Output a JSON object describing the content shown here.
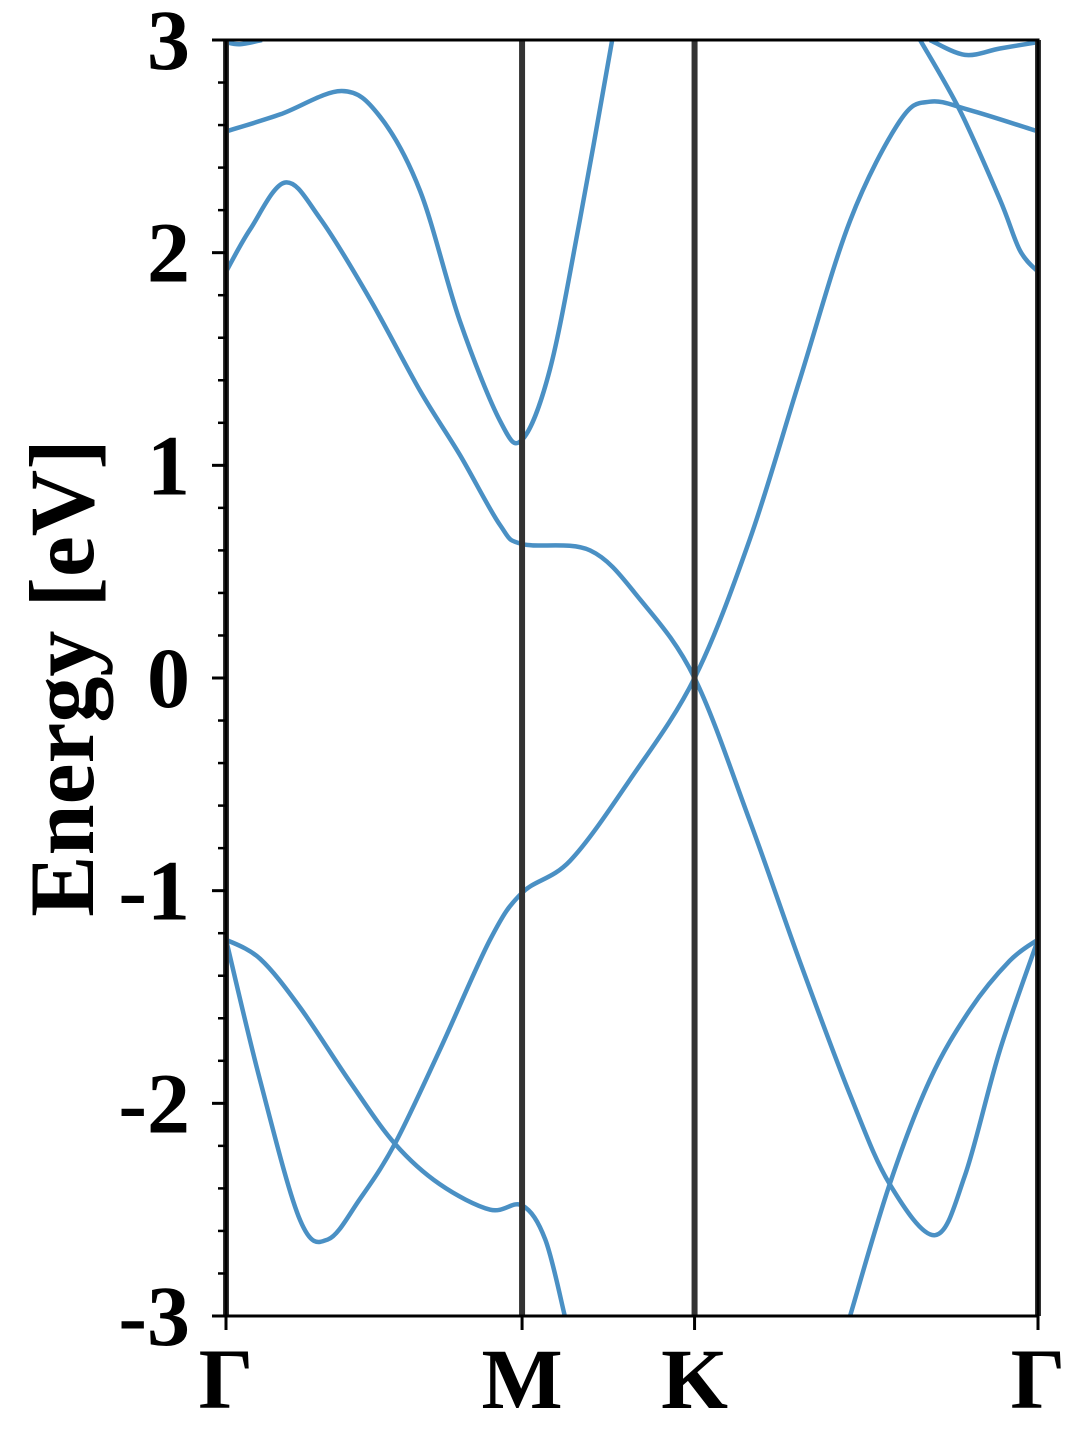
{
  "chart_data": {
    "type": "line",
    "y_label": "Energy [eV]",
    "xlim": [
      0,
      1.577
    ],
    "xticks": [
      {
        "value": 0,
        "label": "Γ"
      },
      {
        "value": 0.575,
        "label": "M"
      },
      {
        "value": 0.91,
        "label": "K"
      },
      {
        "value": 1.577,
        "label": "Γ"
      }
    ],
    "xgrid": true,
    "xgrid_color": "#333333",
    "ylim": [
      -3,
      3
    ],
    "yticks": [
      -3,
      -2,
      -1,
      0,
      1,
      2,
      3
    ],
    "yticks_minor": [
      -2.8,
      -2.6,
      -2.4,
      -2.2,
      -1.8,
      -1.6,
      -1.4,
      -1.2,
      -0.8,
      -0.6,
      -0.4,
      -0.2,
      0.2,
      0.4,
      0.6,
      0.8,
      1.2,
      1.4,
      1.6,
      1.8,
      2.2,
      2.4,
      2.6,
      2.8
    ],
    "series": [
      {
        "color": "#4a90c4",
        "x": [
          0,
          0.066,
          0.144,
          0.198,
          0.26,
          0.328,
          0.415,
          0.513,
          0.575,
          0.668,
          0.784,
          0.91,
          1.017,
          1.114,
          1.212,
          1.309,
          1.367,
          1.445,
          1.577
        ],
        "values": [
          -1.23,
          -1.89,
          -2.55,
          -2.64,
          -2.45,
          -2.19,
          -1.75,
          -1.23,
          -1.01,
          -0.86,
          -0.48,
          0,
          0.65,
          1.4,
          2.15,
          2.62,
          2.71,
          2.67,
          2.57
        ]
      },
      {
        "color": "#4a90c4",
        "x": [
          0,
          0.066,
          0.144,
          0.241,
          0.328,
          0.415,
          0.513,
          0.575,
          0.62,
          0.658
        ],
        "values": [
          -1.23,
          -1.32,
          -1.55,
          -1.9,
          -2.19,
          -2.38,
          -2.5,
          -2.48,
          -2.64,
          -3
        ]
      },
      {
        "color": "#4a90c4",
        "x": [
          0,
          0.047,
          0.115,
          0.183,
          0.28,
          0.377,
          0.454,
          0.532,
          0.575,
          0.707,
          0.804,
          0.91,
          1.017,
          1.114,
          1.212,
          1.289,
          1.377,
          1.435,
          1.503,
          1.577
        ],
        "values": [
          1.91,
          2.11,
          2.33,
          2.16,
          1.78,
          1.35,
          1.05,
          0.72,
          0.63,
          0.6,
          0.37,
          0,
          -0.67,
          -1.33,
          -1.96,
          -2.38,
          -2.62,
          -2.34,
          -1.75,
          -1.23
        ]
      },
      {
        "color": "#4a90c4",
        "x": [
          0,
          0.105,
          0.225,
          0.299,
          0.377,
          0.454,
          0.532,
          0.575,
          0.629,
          0.687,
          0.75
        ],
        "values": [
          2.57,
          2.65,
          2.76,
          2.64,
          2.29,
          1.68,
          1.21,
          1.12,
          1.45,
          2.15,
          3
        ]
      },
      {
        "color": "#4a90c4",
        "x": [
          0,
          0.027,
          0.07
        ],
        "values": [
          2.99,
          2.98,
          3
        ]
      },
      {
        "color": "#4a90c4",
        "x": [
          1.212,
          1.289,
          1.367,
          1.445,
          1.522,
          1.577
        ],
        "values": [
          -3,
          -2.38,
          -1.89,
          -1.56,
          -1.33,
          -1.23
        ]
      },
      {
        "color": "#4a90c4",
        "x": [
          1.348,
          1.425,
          1.503,
          1.542,
          1.577
        ],
        "values": [
          3,
          2.67,
          2.25,
          2.01,
          1.91
        ]
      },
      {
        "color": "#4a90c4",
        "x": [
          1.367,
          1.435,
          1.503,
          1.577
        ],
        "values": [
          3,
          2.93,
          2.96,
          2.99
        ]
      }
    ]
  }
}
